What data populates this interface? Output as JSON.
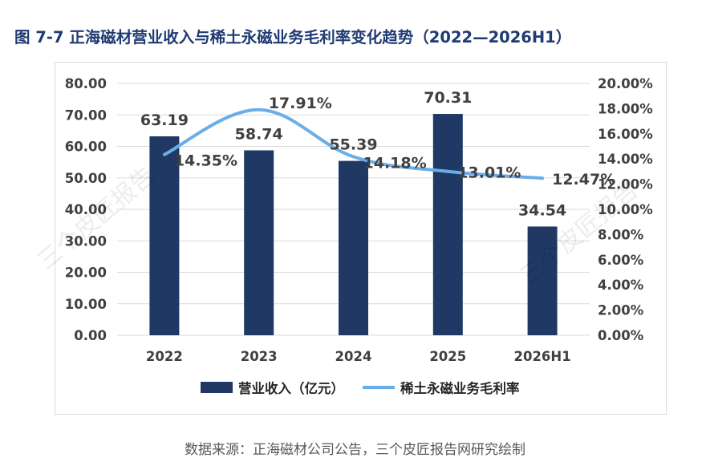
{
  "title": "图 7-7  正海磁材营业收入与稀土永磁业务毛利率变化趋势（2022—2026H1）",
  "source_note": "数据来源：正海磁材公司公告，三个皮匠报告网研究绘制",
  "watermark_text": "三个皮匠报告",
  "chart_data": {
    "type": "bar+line",
    "categories": [
      "2022",
      "2023",
      "2024",
      "2025",
      "2026H1"
    ],
    "series": [
      {
        "name": "营业收入（亿元）",
        "type": "bar",
        "axis": "left",
        "color": "#1f3864",
        "values": [
          63.19,
          58.74,
          55.39,
          70.31,
          34.54
        ],
        "labels": [
          "63.19",
          "58.74",
          "55.39",
          "70.31",
          "34.54"
        ]
      },
      {
        "name": "稀土永磁业务毛利率",
        "type": "line",
        "axis": "right",
        "color": "#6aaee8",
        "smooth": true,
        "values": [
          14.35,
          17.91,
          14.18,
          13.01,
          12.47
        ],
        "labels": [
          "14.35%",
          "17.91%",
          "14.18%",
          "13.01%",
          "12.47%"
        ]
      }
    ],
    "y_left": {
      "min": 0,
      "max": 80,
      "ticks": [
        "0.00",
        "10.00",
        "20.00",
        "30.00",
        "40.00",
        "50.00",
        "60.00",
        "70.00",
        "80.00"
      ]
    },
    "y_right": {
      "min": 0,
      "max": 20,
      "ticks": [
        "0.00%",
        "2.00%",
        "4.00%",
        "6.00%",
        "8.00%",
        "10.00%",
        "12.00%",
        "14.00%",
        "16.00%",
        "18.00%",
        "20.00%"
      ]
    },
    "grid": true,
    "legend_position": "bottom"
  }
}
